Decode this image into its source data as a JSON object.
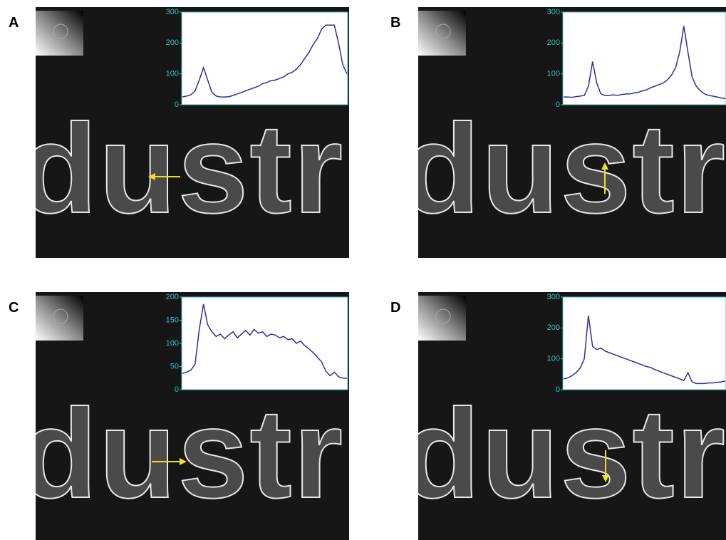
{
  "chart_data": [
    {
      "label": "A",
      "photo_text": "dustr",
      "type": "line",
      "color": "#2e2e9e",
      "tick_color": "#3bbfbf",
      "ylim": [
        0,
        300
      ],
      "yticks": [
        0,
        100,
        200,
        300
      ],
      "values": [
        25,
        28,
        32,
        45,
        80,
        120,
        80,
        40,
        28,
        25,
        25,
        26,
        30,
        35,
        40,
        45,
        50,
        55,
        60,
        68,
        72,
        78,
        80,
        85,
        90,
        100,
        105,
        115,
        130,
        150,
        170,
        195,
        215,
        245,
        258,
        258,
        258,
        200,
        130,
        100
      ]
    },
    {
      "label": "B",
      "photo_text": "dustr",
      "type": "line",
      "color": "#2e2e9e",
      "tick_color": "#3bbfbf",
      "ylim": [
        0,
        300
      ],
      "yticks": [
        0,
        100,
        200,
        300
      ],
      "values": [
        25,
        25,
        24,
        26,
        28,
        30,
        60,
        140,
        70,
        35,
        30,
        30,
        32,
        30,
        33,
        35,
        35,
        38,
        40,
        45,
        48,
        55,
        60,
        65,
        70,
        80,
        95,
        120,
        170,
        255,
        170,
        90,
        60,
        45,
        35,
        30,
        28,
        25,
        22,
        20
      ]
    },
    {
      "label": "C",
      "photo_text": "dustr",
      "type": "line",
      "color": "#2e2e9e",
      "tick_color": "#3bbfbf",
      "ylim": [
        0,
        200
      ],
      "yticks": [
        0,
        50,
        100,
        150,
        200
      ],
      "values": [
        35,
        38,
        42,
        55,
        130,
        185,
        140,
        125,
        115,
        120,
        110,
        118,
        125,
        112,
        120,
        128,
        118,
        130,
        122,
        125,
        115,
        120,
        118,
        112,
        115,
        108,
        110,
        100,
        105,
        95,
        88,
        80,
        70,
        60,
        40,
        30,
        38,
        28,
        25,
        25
      ]
    },
    {
      "label": "D",
      "photo_text": "dustr",
      "type": "line",
      "color": "#2e2e9e",
      "tick_color": "#3bbfbf",
      "ylim": [
        0,
        300
      ],
      "yticks": [
        0,
        100,
        200,
        300
      ],
      "values": [
        35,
        38,
        45,
        55,
        70,
        100,
        240,
        140,
        130,
        135,
        125,
        120,
        115,
        110,
        105,
        100,
        95,
        90,
        85,
        80,
        75,
        72,
        65,
        60,
        55,
        50,
        45,
        40,
        35,
        30,
        55,
        25,
        20,
        20,
        20,
        22,
        22,
        24,
        25,
        28
      ]
    }
  ]
}
